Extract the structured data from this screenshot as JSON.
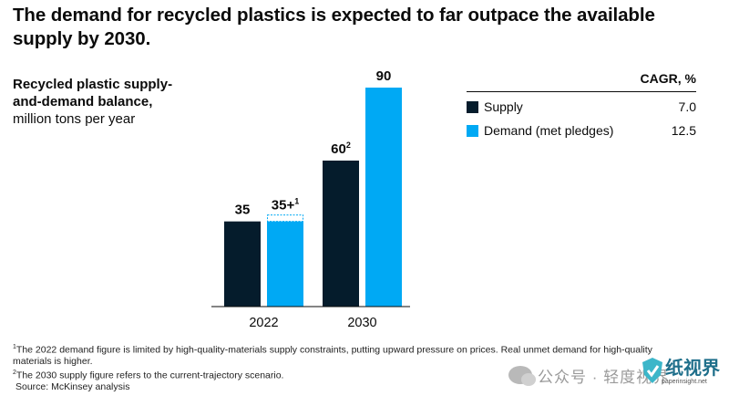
{
  "title": "The demand for recycled plastics is expected to far outpace the available supply by 2030.",
  "subtitle": {
    "bold": "Recycled plastic supply-and-demand balance,",
    "normal": "million tons per year"
  },
  "legend": {
    "header": "CAGR, %",
    "items": [
      {
        "name": "Supply",
        "value": "7.0",
        "color": "#051c2c"
      },
      {
        "name": "Demand (met pledges)",
        "value": "12.5",
        "color": "#00a9f4"
      }
    ]
  },
  "chart_data": {
    "type": "bar",
    "categories": [
      "2022",
      "2030"
    ],
    "series": [
      {
        "name": "Supply",
        "values": [
          35,
          60
        ],
        "labels": [
          "35",
          "60"
        ],
        "sup": [
          "",
          "2"
        ],
        "color": "#051c2c"
      },
      {
        "name": "Demand (met pledges)",
        "values": [
          35,
          90
        ],
        "labels": [
          "35+",
          "90"
        ],
        "sup": [
          "1",
          ""
        ],
        "color": "#00a9f4"
      }
    ],
    "ylim": [
      0,
      90
    ],
    "title": "Recycled plastic supply-and-demand balance, million tons per year",
    "xlabel": "",
    "ylabel": ""
  },
  "footnotes": [
    {
      "mark": "1",
      "text": "The 2022 demand figure is limited by high-quality-materials supply constraints, putting upward pressure on prices. Real unmet demand for high-quality materials is higher."
    },
    {
      "mark": "2",
      "text": "The 2030 supply figure refers to the current-trajectory scenario."
    }
  ],
  "source": "Source: McKinsey analysis",
  "watermark": {
    "text": "公众号 · 轻度视界",
    "logo_text": "纸视界",
    "logo_url": "paperinsight.net"
  }
}
